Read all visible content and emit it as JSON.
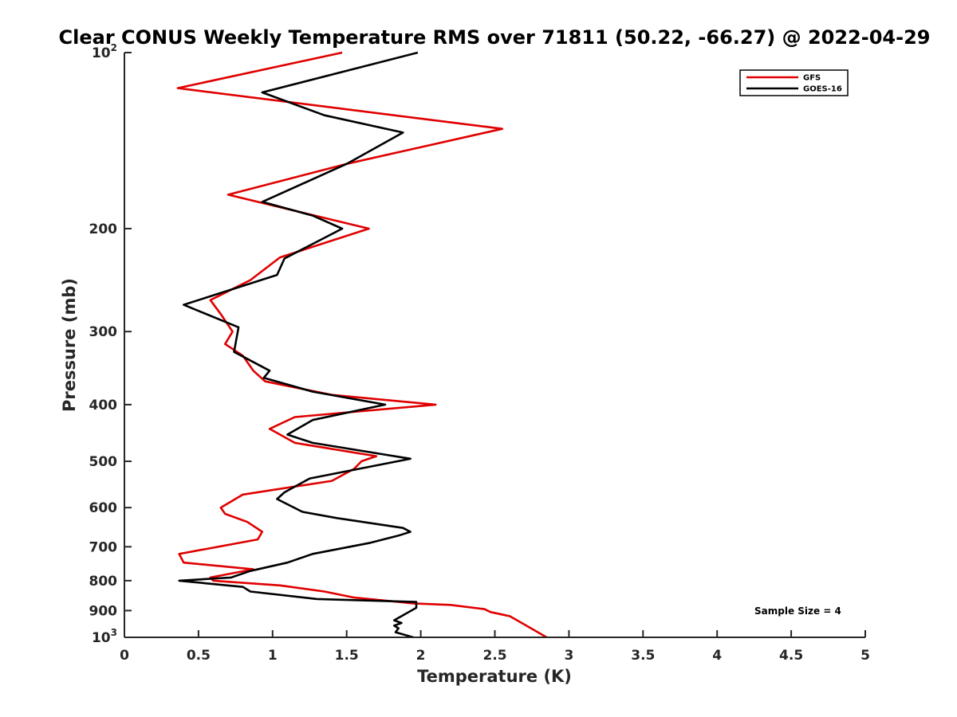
{
  "chart_data": {
    "type": "line",
    "title": "Clear CONUS Weekly Temperature RMS over 71811 (50.22, -66.27) @ 2022-04-29",
    "xlabel": "Temperature (K)",
    "ylabel": "Pressure (mb)",
    "xlim": [
      0,
      5
    ],
    "ylim": [
      100,
      1000
    ],
    "y_scale": "log",
    "y_reversed": true,
    "x_ticks": [
      "0",
      "0.5",
      "1",
      "1.5",
      "2",
      "2.5",
      "3",
      "3.5",
      "4",
      "4.5",
      "5"
    ],
    "y_ticks": [
      {
        "value": 100,
        "base": "10",
        "exp": "2"
      },
      {
        "value": 200,
        "label": "200"
      },
      {
        "value": 300,
        "label": "300"
      },
      {
        "value": 400,
        "label": "400"
      },
      {
        "value": 500,
        "label": "500"
      },
      {
        "value": 600,
        "label": "600"
      },
      {
        "value": 700,
        "label": "700"
      },
      {
        "value": 800,
        "label": "800"
      },
      {
        "value": 900,
        "label": "900"
      },
      {
        "value": 1000,
        "base": "10",
        "exp": "3"
      }
    ],
    "grid": false,
    "legend_position": "top-right",
    "annotation": "Sample Size = 4",
    "series": [
      {
        "name": "GFS",
        "color": "#e00000",
        "points": [
          [
            1.47,
            100
          ],
          [
            0.36,
            115
          ],
          [
            2.55,
            135
          ],
          [
            1.5,
            155
          ],
          [
            0.7,
            175
          ],
          [
            1.65,
            200
          ],
          [
            1.05,
            224
          ],
          [
            0.85,
            245
          ],
          [
            0.58,
            265
          ],
          [
            0.65,
            280
          ],
          [
            0.73,
            300
          ],
          [
            0.68,
            315
          ],
          [
            0.8,
            330
          ],
          [
            0.87,
            350
          ],
          [
            0.95,
            365
          ],
          [
            1.4,
            385
          ],
          [
            2.1,
            400
          ],
          [
            1.15,
            420
          ],
          [
            0.98,
            440
          ],
          [
            1.15,
            465
          ],
          [
            1.7,
            490
          ],
          [
            1.6,
            500
          ],
          [
            1.55,
            515
          ],
          [
            1.4,
            540
          ],
          [
            0.8,
            570
          ],
          [
            0.65,
            600
          ],
          [
            0.68,
            615
          ],
          [
            0.83,
            635
          ],
          [
            0.93,
            660
          ],
          [
            0.9,
            680
          ],
          [
            0.37,
            720
          ],
          [
            0.4,
            745
          ],
          [
            0.87,
            765
          ],
          [
            0.58,
            790
          ],
          [
            0.6,
            800
          ],
          [
            1.05,
            815
          ],
          [
            1.35,
            835
          ],
          [
            1.55,
            855
          ],
          [
            1.95,
            875
          ],
          [
            2.2,
            880
          ],
          [
            2.43,
            895
          ],
          [
            2.47,
            905
          ],
          [
            2.6,
            920
          ],
          [
            2.65,
            935
          ],
          [
            2.85,
            1000
          ]
        ]
      },
      {
        "name": "GOES-16",
        "color": "#000000",
        "points": [
          [
            1.98,
            100
          ],
          [
            0.93,
            117
          ],
          [
            1.35,
            128
          ],
          [
            1.88,
            137
          ],
          [
            1.5,
            155
          ],
          [
            0.93,
            180
          ],
          [
            1.27,
            190
          ],
          [
            1.47,
            200
          ],
          [
            1.08,
            225
          ],
          [
            1.03,
            240
          ],
          [
            0.4,
            270
          ],
          [
            0.77,
            295
          ],
          [
            0.74,
            325
          ],
          [
            0.98,
            350
          ],
          [
            0.94,
            360
          ],
          [
            1.27,
            380
          ],
          [
            1.76,
            400
          ],
          [
            1.27,
            425
          ],
          [
            1.1,
            450
          ],
          [
            1.27,
            465
          ],
          [
            1.93,
            495
          ],
          [
            1.25,
            535
          ],
          [
            1.08,
            565
          ],
          [
            1.03,
            580
          ],
          [
            1.2,
            610
          ],
          [
            1.43,
            625
          ],
          [
            1.88,
            650
          ],
          [
            1.93,
            660
          ],
          [
            1.85,
            670
          ],
          [
            1.65,
            690
          ],
          [
            1.27,
            720
          ],
          [
            1.1,
            745
          ],
          [
            0.85,
            770
          ],
          [
            0.72,
            790
          ],
          [
            0.37,
            800
          ],
          [
            0.8,
            820
          ],
          [
            0.85,
            835
          ],
          [
            1.3,
            860
          ],
          [
            1.97,
            870
          ],
          [
            1.97,
            890
          ],
          [
            1.82,
            935
          ],
          [
            1.87,
            945
          ],
          [
            1.82,
            955
          ],
          [
            1.85,
            965
          ],
          [
            1.83,
            980
          ],
          [
            1.95,
            1000
          ]
        ]
      }
    ]
  }
}
